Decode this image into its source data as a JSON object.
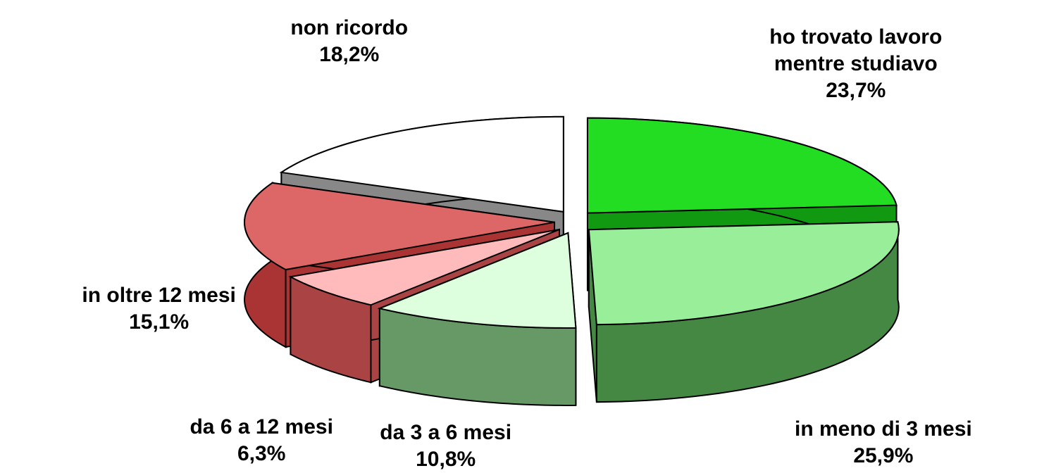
{
  "chart_data": {
    "type": "pie",
    "categories": [
      "ho trovato lavoro mentre studiavo",
      "in meno di 3 mesi",
      "da 3 a 6 mesi",
      "da 6 a 12 mesi",
      "in oltre 12 mesi",
      "non ricordo"
    ],
    "values": [
      23.7,
      25.9,
      10.8,
      6.3,
      15.1,
      18.2
    ],
    "value_labels": [
      "23,7%",
      "25,9%",
      "10,8%",
      "6,3%",
      "15,1%",
      "18,2%"
    ],
    "colors": [
      "#22dd22",
      "#99ee99",
      "#ddffdd",
      "#ffbbbb",
      "#dd6666",
      "#ffffff"
    ],
    "side_colors": [
      "#119911",
      "#448844",
      "#669966",
      "#aa4444",
      "#aa3333",
      "#888888"
    ]
  }
}
